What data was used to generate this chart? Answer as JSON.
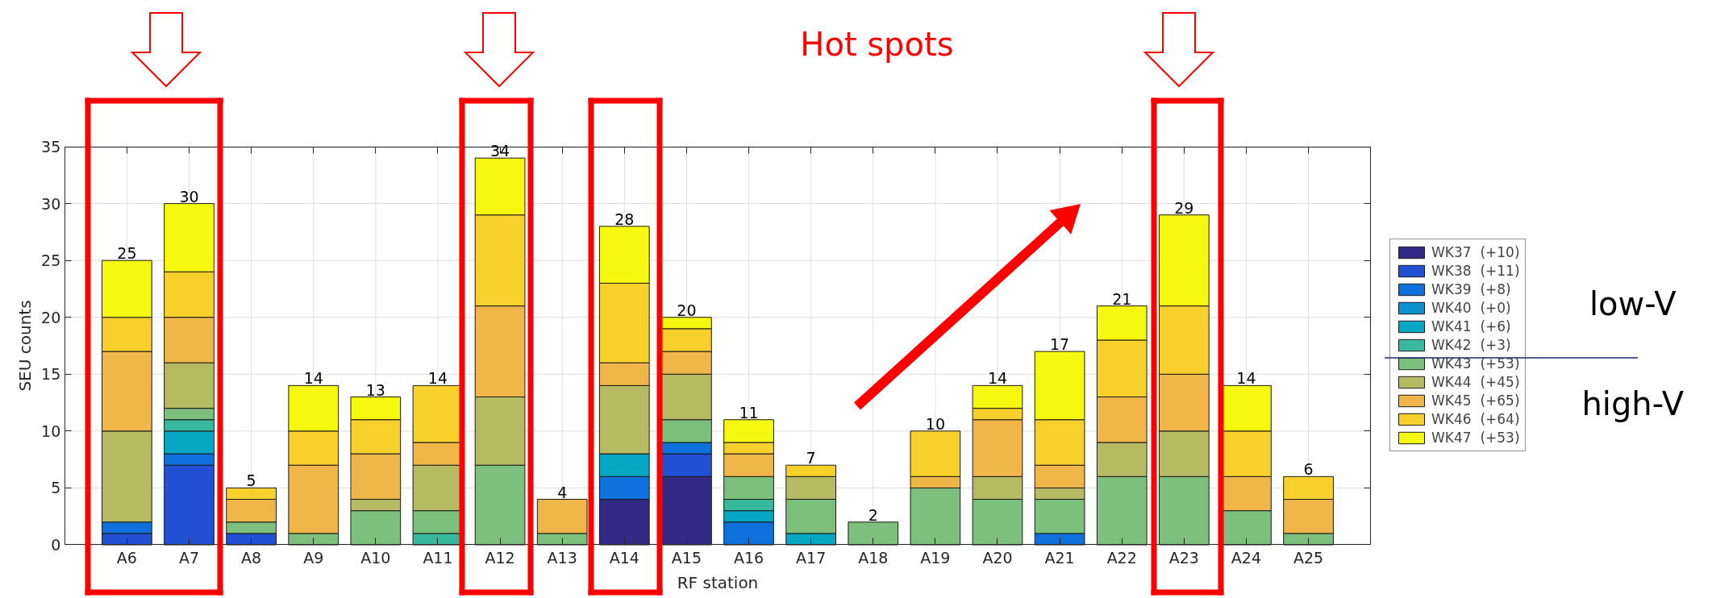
{
  "chart_data": {
    "type": "bar",
    "stacked": true,
    "xlabel": "RF station",
    "ylabel": "SEU counts",
    "categories": [
      "A6",
      "A7",
      "A8",
      "A9",
      "A10",
      "A11",
      "A12",
      "A13",
      "A14",
      "A15",
      "A16",
      "A17",
      "A18",
      "A19",
      "A20",
      "A21",
      "A22",
      "A23",
      "A24",
      "A25"
    ],
    "series": [
      {
        "name": "WK37  (+10)",
        "color": "#332a85",
        "values": [
          null,
          null,
          null,
          null,
          null,
          null,
          null,
          null,
          4,
          6,
          null,
          null,
          null,
          null,
          null,
          null,
          null,
          null,
          null,
          null
        ]
      },
      {
        "name": "WK38  (+11)",
        "color": "#2150d4",
        "values": [
          1,
          7,
          1,
          null,
          null,
          null,
          null,
          null,
          null,
          2,
          null,
          null,
          null,
          null,
          null,
          null,
          null,
          null,
          null,
          null
        ]
      },
      {
        "name": "WK39  (+8)",
        "color": "#0f72dc",
        "values": [
          1,
          1,
          null,
          null,
          null,
          null,
          null,
          null,
          2,
          1,
          2,
          null,
          null,
          null,
          null,
          1,
          null,
          null,
          null,
          null
        ]
      },
      {
        "name": "WK40  (+0)",
        "color": "#0d91d0",
        "values": [
          null,
          null,
          null,
          null,
          null,
          null,
          null,
          null,
          null,
          null,
          null,
          null,
          null,
          null,
          null,
          null,
          null,
          null,
          null,
          null
        ]
      },
      {
        "name": "WK41  (+6)",
        "color": "#07a7c4",
        "values": [
          null,
          2,
          null,
          null,
          null,
          null,
          null,
          null,
          2,
          null,
          1,
          1,
          null,
          null,
          null,
          null,
          null,
          null,
          null,
          null
        ]
      },
      {
        "name": "WK42  (+3)",
        "color": "#38b89c",
        "values": [
          null,
          1,
          null,
          null,
          null,
          1,
          null,
          null,
          null,
          null,
          1,
          null,
          null,
          null,
          null,
          null,
          null,
          null,
          null,
          null
        ]
      },
      {
        "name": "WK43  (+53)",
        "color": "#7dbf7c",
        "values": [
          null,
          1,
          1,
          1,
          3,
          2,
          7,
          1,
          null,
          2,
          2,
          3,
          2,
          5,
          4,
          3,
          6,
          6,
          3,
          1
        ]
      },
      {
        "name": "WK44  (+45)",
        "color": "#b6bb63",
        "values": [
          8,
          4,
          null,
          null,
          1,
          4,
          6,
          null,
          6,
          4,
          null,
          2,
          null,
          null,
          2,
          1,
          3,
          4,
          null,
          null
        ]
      },
      {
        "name": "WK45  (+65)",
        "color": "#f0b64a",
        "values": [
          7,
          4,
          2,
          6,
          4,
          2,
          8,
          3,
          2,
          2,
          2,
          null,
          null,
          1,
          5,
          2,
          4,
          5,
          3,
          3
        ]
      },
      {
        "name": "WK46  (+64)",
        "color": "#f8d02c",
        "values": [
          3,
          4,
          1,
          3,
          3,
          5,
          8,
          null,
          7,
          2,
          1,
          1,
          null,
          4,
          1,
          4,
          5,
          6,
          4,
          2
        ]
      },
      {
        "name": "WK47  (+53)",
        "color": "#f7f80f",
        "values": [
          5,
          6,
          null,
          4,
          2,
          null,
          5,
          null,
          5,
          1,
          2,
          null,
          null,
          null,
          2,
          6,
          3,
          8,
          4,
          null
        ]
      }
    ],
    "totals": [
      "25",
      "30",
      "5",
      "14",
      "13",
      "14",
      "34",
      "4",
      "28",
      "20",
      "11",
      "7",
      "2",
      "10",
      "14",
      "17",
      "21",
      "29",
      "14",
      "6"
    ],
    "ylim": [
      0,
      35
    ],
    "yticks": [
      0,
      5,
      10,
      15,
      20,
      25,
      30,
      35
    ],
    "grid": true,
    "legend": "right",
    "annotations": [
      "Hot spots",
      "low-V",
      "high-V"
    ]
  }
}
